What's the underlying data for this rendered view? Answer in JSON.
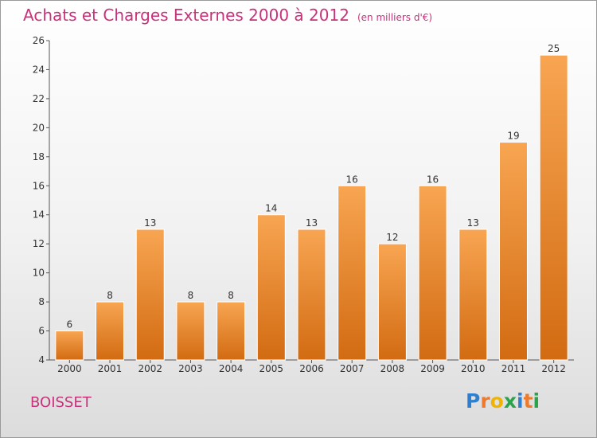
{
  "header": {
    "title": "Achats et Charges Externes 2000 à 2012",
    "unit": "(en milliers d'€)"
  },
  "commune": "BOISSET",
  "logo": {
    "letters": [
      "P",
      "r",
      "o",
      "x",
      "i",
      "t",
      "i"
    ],
    "colors": [
      "#2f7fd0",
      "#ee7a2a",
      "#f0b400",
      "#2aa34a",
      "#2f7fd0",
      "#ee7a2a",
      "#2aa34a"
    ]
  },
  "colors": {
    "title": "#c8327a",
    "bar_top": "#f8a552",
    "bar_bottom": "#d26b12",
    "axis": "#555555"
  },
  "chart_data": {
    "type": "bar",
    "categories": [
      "2000",
      "2001",
      "2002",
      "2003",
      "2004",
      "2005",
      "2006",
      "2007",
      "2008",
      "2009",
      "2010",
      "2011",
      "2012"
    ],
    "values": [
      6,
      8,
      13,
      8,
      8,
      14,
      13,
      16,
      12,
      16,
      13,
      19,
      25
    ],
    "ylim": [
      4,
      26
    ],
    "yticks": [
      4,
      6,
      8,
      10,
      12,
      14,
      16,
      18,
      20,
      22,
      24,
      26
    ],
    "grid": false
  }
}
